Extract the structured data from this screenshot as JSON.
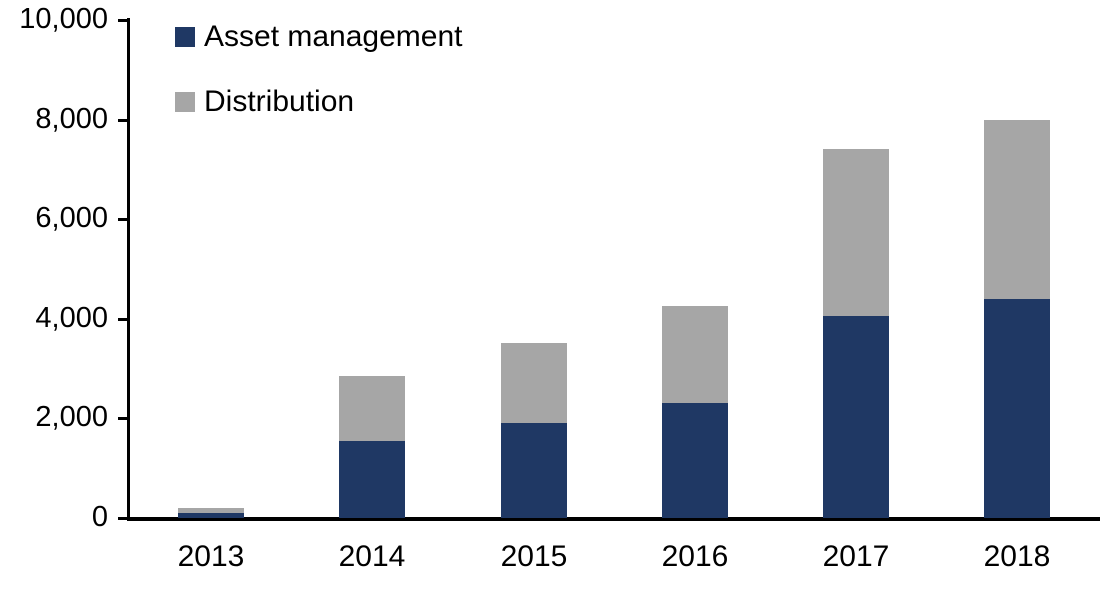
{
  "chart_data": {
    "type": "bar",
    "subtype": "stacked-vertical",
    "title": "",
    "xlabel": "",
    "ylabel": "",
    "categories": [
      "2013",
      "2014",
      "2015",
      "2016",
      "2017",
      "2018"
    ],
    "series": [
      {
        "name": "Asset management",
        "color": "#1F3864",
        "values": [
          100,
          1550,
          1900,
          2300,
          4050,
          4400
        ]
      },
      {
        "name": "Distribution",
        "color": "#A6A6A6",
        "values": [
          100,
          1300,
          1600,
          1950,
          3350,
          3600
        ]
      }
    ],
    "totals": [
      200,
      2850,
      3500,
      4250,
      7400,
      8000
    ],
    "ylim": [
      0,
      10000
    ],
    "y_ticks": [
      {
        "value": 0,
        "label": "0"
      },
      {
        "value": 2000,
        "label": "2,000"
      },
      {
        "value": 4000,
        "label": "4,000"
      },
      {
        "value": 6000,
        "label": "6,000"
      },
      {
        "value": 8000,
        "label": "8,000"
      },
      {
        "value": 10000,
        "label": "10,000"
      }
    ],
    "grid": false,
    "legend_position": "top-left",
    "axis_color": "#000000"
  }
}
